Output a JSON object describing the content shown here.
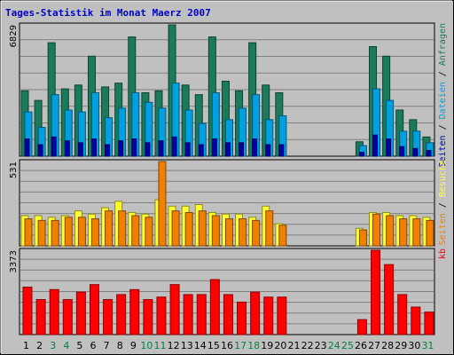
{
  "chart_data": {
    "type": "bar",
    "title": "Tages-Statistik im Monat Maerz 2007",
    "days": [
      "1",
      "2",
      "3",
      "4",
      "5",
      "6",
      "7",
      "8",
      "9",
      "10",
      "11",
      "12",
      "13",
      "14",
      "15",
      "16",
      "17",
      "18",
      "19",
      "20",
      "21",
      "22",
      "23",
      "24",
      "25",
      "26",
      "27",
      "28",
      "29",
      "30",
      "31"
    ],
    "weekend_days": [
      "3",
      "4",
      "10",
      "11",
      "17",
      "18",
      "24",
      "25",
      "31"
    ],
    "colors": {
      "anfragen": "#1a7a5a",
      "dateien": "#00a0e0",
      "seiten_blue": "#0000aa",
      "besuche": "#ffff33",
      "seiten_orange": "#f08000",
      "kb": "#ff0000",
      "weekday_label": "#000000",
      "weekend_label": "#008040"
    },
    "panels": [
      {
        "name": "requests",
        "ymax_label": "6829",
        "ymax": 6829,
        "side_label": {
          "seiten": "Seiten",
          "sep1": " / ",
          "dateien": "Dateien",
          "sep2": " / ",
          "anfragen": "Anfragen"
        },
        "series": [
          {
            "key": "anfragen",
            "values": [
              3400,
              2900,
              5900,
              3500,
              3700,
              5200,
              3600,
              3800,
              6200,
              3300,
              3400,
              6829,
              3700,
              3200,
              6200,
              3900,
              3400,
              5900,
              3700,
              3300,
              0,
              0,
              0,
              0,
              0,
              750,
              5700,
              5200,
              2400,
              1900,
              1000
            ]
          },
          {
            "key": "dateien",
            "values": [
              2300,
              1500,
              3200,
              2400,
              2300,
              3300,
              2000,
              2500,
              3300,
              2800,
              2500,
              3800,
              2400,
              1700,
              3300,
              1900,
              2500,
              3200,
              1900,
              2100,
              0,
              0,
              0,
              0,
              0,
              550,
              3500,
              2900,
              1300,
              1300,
              700
            ]
          },
          {
            "key": "seiten_blue",
            "values": [
              900,
              600,
              1000,
              800,
              700,
              900,
              600,
              800,
              900,
              700,
              800,
              1000,
              700,
              600,
              900,
              700,
              700,
              900,
              600,
              600,
              0,
              0,
              0,
              0,
              0,
              200,
              1100,
              900,
              500,
              400,
              300
            ]
          }
        ]
      },
      {
        "name": "visits",
        "ymax_label": "531",
        "ymax": 531,
        "side_label": {
          "seiten": "Seiten",
          "sep1": " / ",
          "besuche": "Besuche"
        },
        "series": [
          {
            "key": "besuche",
            "values": [
              190,
              190,
              180,
              190,
              220,
              200,
              240,
              280,
              210,
              200,
              290,
              250,
              250,
              260,
              210,
              200,
              200,
              180,
              250,
              140,
              0,
              0,
              0,
              0,
              0,
              110,
              210,
              210,
              190,
              190,
              180
            ]
          },
          {
            "key": "seiten_orange",
            "values": [
              170,
              160,
              160,
              180,
              180,
              170,
              220,
              220,
              190,
              180,
              531,
              220,
              210,
              220,
              190,
              170,
              170,
              160,
              220,
              130,
              0,
              0,
              0,
              0,
              0,
              100,
              200,
              190,
              170,
              170,
              160
            ]
          }
        ]
      },
      {
        "name": "kb",
        "ymax_label": "3373",
        "ymax": 3373,
        "side_label": {
          "kb": "kb"
        },
        "series": [
          {
            "key": "kb",
            "values": [
              1900,
              1400,
              1800,
              1400,
              1700,
              2000,
              1400,
              1600,
              1800,
              1400,
              1500,
              2000,
              1600,
              1600,
              2200,
              1600,
              1300,
              1700,
              1500,
              1500,
              0,
              0,
              0,
              0,
              0,
              600,
              3373,
              2800,
              1600,
              1100,
              900
            ]
          }
        ]
      }
    ]
  }
}
